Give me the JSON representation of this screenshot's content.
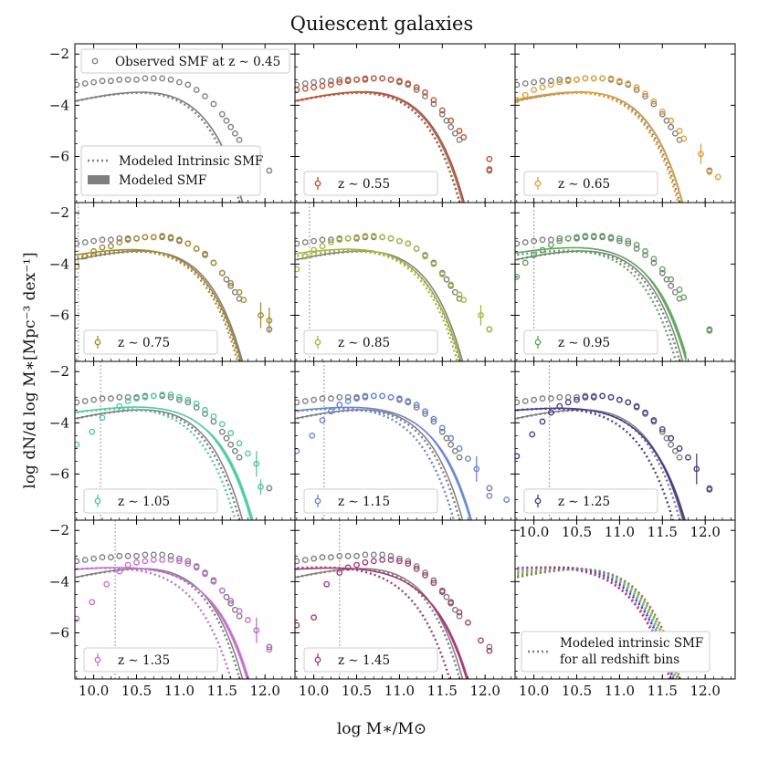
{
  "figure": {
    "title": "Quiescent galaxies",
    "xlabel": "log M∗/M⊙",
    "ylabel": "log dN/d log M∗[Mpc⁻³ dex⁻¹]"
  },
  "chart_data": {
    "type": "line",
    "title": "Quiescent galaxies",
    "xlabel": "log M∗/M⊙",
    "ylabel": "log dN/d log M∗ [Mpc^-3 dex^-1]",
    "xlim": [
      9.78,
      12.35
    ],
    "ylim": [
      -7.8,
      -1.6
    ],
    "xticks": [
      10.0,
      10.5,
      11.0,
      11.5,
      12.0
    ],
    "xtick_labels": [
      "10.0",
      "10.5",
      "11.0",
      "11.5",
      "12.0"
    ],
    "yticks": [
      -2,
      -4,
      -6
    ],
    "ytick_labels": [
      "−2",
      "−4",
      "−6"
    ],
    "reference_color": "#7f7f7f",
    "reference_label": "Observed SMF at z ∼ 0.45",
    "reference_observed": {
      "x": [
        9.8,
        9.9,
        10.0,
        10.1,
        10.2,
        10.3,
        10.4,
        10.5,
        10.6,
        10.7,
        10.8,
        10.9,
        11.0,
        11.1,
        11.2,
        11.3,
        11.4,
        11.5,
        11.55,
        11.6,
        11.65,
        11.7,
        12.05
      ],
      "y": [
        -3.2,
        -3.15,
        -3.1,
        -3.05,
        -3.05,
        -3.0,
        -3.0,
        -3.0,
        -2.95,
        -2.95,
        -2.95,
        -3.0,
        -3.1,
        -3.2,
        -3.4,
        -3.65,
        -3.95,
        -4.35,
        -4.6,
        -4.85,
        -5.1,
        -5.35,
        -6.55
      ]
    },
    "reference_model": {
      "phi": -2.95,
      "mc": 10.75,
      "alpha": -0.15,
      "beta": 1.35,
      "xmax": 11.78
    },
    "reference_intrinsic": {
      "phi": -2.95,
      "mc": 10.75,
      "alpha": -0.15,
      "beta": 1.45,
      "xmax": 12.25
    },
    "legend": {
      "observed": "Observed SMF at z ∼ 0.45",
      "intrinsic": "Modeled Intrinsic SMF",
      "modeled": "Modeled SMF",
      "all_intrinsic_line1": "Modeled intrinsic SMF",
      "all_intrinsic_line2": "for all redshift bins"
    },
    "series": [
      {
        "label": "z ∼ 0.55",
        "color": "#c2502e",
        "completeness": null,
        "model": {
          "phi": -2.95,
          "mc": 10.75,
          "alpha": -0.15,
          "beta": 1.3,
          "xmax": 11.78,
          "spread": 0.12
        },
        "intrinsic": {
          "phi": -2.95,
          "mc": 10.75,
          "alpha": -0.15,
          "beta": 1.45,
          "xmax": 12.25
        },
        "observed": {
          "x": [
            9.8,
            9.9,
            10.0,
            10.1,
            10.2,
            10.3,
            10.4,
            10.5,
            10.6,
            10.7,
            10.8,
            10.9,
            11.0,
            11.1,
            11.2,
            11.3,
            11.4,
            11.5,
            11.6,
            11.7,
            11.75,
            12.05,
            12.05
          ],
          "y": [
            -3.4,
            -3.35,
            -3.3,
            -3.25,
            -3.2,
            -3.1,
            -3.05,
            -3.0,
            -3.0,
            -2.95,
            -2.95,
            -3.0,
            -3.05,
            -3.15,
            -3.3,
            -3.5,
            -3.8,
            -4.2,
            -4.6,
            -5.0,
            -5.25,
            -6.1,
            -6.5
          ],
          "err": [
            0,
            0,
            0,
            0,
            0,
            0,
            0,
            0,
            0,
            0,
            0,
            0,
            0,
            0,
            0,
            0,
            0,
            0,
            0,
            0,
            0,
            0,
            0
          ]
        }
      },
      {
        "label": "z ∼ 0.65",
        "color": "#e0a03a",
        "completeness": null,
        "model": {
          "phi": -2.95,
          "mc": 10.75,
          "alpha": -0.2,
          "beta": 1.35,
          "xmax": 11.78,
          "spread": 0.14
        },
        "intrinsic": {
          "phi": -2.95,
          "mc": 10.75,
          "alpha": -0.2,
          "beta": 1.5,
          "xmax": 12.25
        },
        "observed": {
          "x": [
            9.8,
            9.9,
            10.0,
            10.1,
            10.2,
            10.3,
            10.4,
            10.5,
            10.6,
            10.7,
            10.8,
            10.9,
            11.0,
            11.1,
            11.2,
            11.3,
            11.4,
            11.5,
            11.6,
            11.7,
            11.75,
            11.95,
            12.05,
            12.15
          ],
          "y": [
            -3.8,
            -3.6,
            -3.4,
            -3.3,
            -3.2,
            -3.1,
            -3.05,
            -3.0,
            -2.95,
            -2.95,
            -2.95,
            -2.95,
            -3.05,
            -3.15,
            -3.3,
            -3.55,
            -3.85,
            -4.25,
            -4.6,
            -5.0,
            -5.3,
            -5.9,
            -6.6,
            -6.8
          ],
          "err": [
            0,
            0,
            0,
            0,
            0,
            0,
            0,
            0,
            0,
            0,
            0,
            0,
            0,
            0,
            0,
            0,
            0,
            0,
            0,
            0,
            0,
            0.4,
            0,
            0
          ]
        }
      },
      {
        "label": "z ∼ 0.75",
        "color": "#a78a2e",
        "completeness": 9.82,
        "model": {
          "phi": -2.95,
          "mc": 10.75,
          "alpha": -0.35,
          "beta": 1.35,
          "xmax": 11.78,
          "spread": 0.14
        },
        "intrinsic": {
          "phi": -2.95,
          "mc": 10.75,
          "alpha": -0.25,
          "beta": 1.5,
          "xmax": 12.25
        },
        "observed": {
          "x": [
            9.8,
            9.9,
            10.0,
            10.1,
            10.2,
            10.3,
            10.4,
            10.5,
            10.6,
            10.7,
            10.8,
            10.9,
            11.0,
            11.1,
            11.2,
            11.3,
            11.4,
            11.5,
            11.6,
            11.7,
            11.75,
            11.95,
            12.05
          ],
          "y": [
            -4.1,
            -3.7,
            -3.5,
            -3.35,
            -3.3,
            -3.15,
            -3.05,
            -3.0,
            -2.95,
            -2.95,
            -2.9,
            -2.95,
            -3.05,
            -3.2,
            -3.4,
            -3.6,
            -3.95,
            -4.35,
            -4.75,
            -5.1,
            -5.4,
            -6.0,
            -6.2
          ],
          "err": [
            0,
            0,
            0,
            0,
            0,
            0,
            0,
            0,
            0,
            0,
            0,
            0,
            0,
            0,
            0,
            0,
            0,
            0,
            0,
            0,
            0,
            0.5,
            0.5
          ]
        }
      },
      {
        "label": "z ∼ 0.85",
        "color": "#a9b53c",
        "completeness": 9.95,
        "model": {
          "phi": -2.95,
          "mc": 10.75,
          "alpha": -0.4,
          "beta": 1.35,
          "xmax": 11.78,
          "spread": 0.15
        },
        "intrinsic": {
          "phi": -2.95,
          "mc": 10.75,
          "alpha": -0.3,
          "beta": 1.5,
          "xmax": 12.25
        },
        "observed": {
          "x": [
            9.8,
            9.9,
            10.0,
            10.1,
            10.2,
            10.3,
            10.4,
            10.5,
            10.6,
            10.7,
            10.8,
            10.9,
            11.0,
            11.1,
            11.2,
            11.3,
            11.4,
            11.5,
            11.6,
            11.7,
            11.75,
            11.95,
            12.05
          ],
          "y": [
            -4.2,
            -3.7,
            -3.45,
            -3.3,
            -3.15,
            -3.05,
            -3.0,
            -2.95,
            -2.9,
            -2.9,
            -2.95,
            -3.0,
            -3.1,
            -3.2,
            -3.4,
            -3.7,
            -4.0,
            -4.4,
            -4.8,
            -5.2,
            -5.4,
            -6.0,
            -6.55
          ],
          "err": [
            0,
            0,
            0,
            0,
            0,
            0,
            0,
            0,
            0,
            0,
            0,
            0,
            0,
            0,
            0,
            0,
            0,
            0,
            0,
            0,
            0,
            0.4,
            0
          ]
        }
      },
      {
        "label": "z ∼ 0.95",
        "color": "#5ca65c",
        "completeness": 10.0,
        "model": {
          "phi": -2.9,
          "mc": 10.8,
          "alpha": -0.4,
          "beta": 1.3,
          "xmax": 11.78,
          "spread": 0.22
        },
        "intrinsic": {
          "phi": -2.95,
          "mc": 10.75,
          "alpha": -0.35,
          "beta": 1.55,
          "xmax": 12.25
        },
        "observed": {
          "x": [
            9.8,
            9.9,
            10.0,
            10.1,
            10.2,
            10.3,
            10.4,
            10.5,
            10.6,
            10.7,
            10.8,
            10.9,
            11.0,
            11.1,
            11.2,
            11.3,
            11.4,
            11.5,
            11.6,
            11.7,
            11.75,
            12.05
          ],
          "y": [
            -4.5,
            -3.95,
            -3.65,
            -3.45,
            -3.25,
            -3.1,
            -3.0,
            -2.95,
            -2.9,
            -2.9,
            -2.9,
            -2.95,
            -3.0,
            -3.1,
            -3.25,
            -3.5,
            -3.8,
            -4.2,
            -4.6,
            -5.0,
            -5.3,
            -6.6
          ],
          "err": [
            0,
            0,
            0,
            0,
            0,
            0,
            0,
            0,
            0,
            0,
            0,
            0,
            0,
            0,
            0,
            0,
            0,
            0,
            0,
            0,
            0,
            0
          ]
        }
      },
      {
        "label": "z ∼ 1.05",
        "color": "#4ecba0",
        "completeness": 10.08,
        "model": {
          "phi": -2.95,
          "mc": 10.85,
          "alpha": -0.45,
          "beta": 1.25,
          "xmax": 11.9,
          "spread": 0.25
        },
        "intrinsic": {
          "phi": -2.95,
          "mc": 10.75,
          "alpha": -0.4,
          "beta": 1.55,
          "xmax": 12.25
        },
        "observed": {
          "x": [
            9.8,
            9.98,
            10.1,
            10.3,
            10.4,
            10.5,
            10.6,
            10.7,
            10.8,
            10.9,
            11.0,
            11.1,
            11.2,
            11.3,
            11.4,
            11.5,
            11.6,
            11.7,
            11.8,
            11.9,
            11.95
          ],
          "y": [
            -4.85,
            -4.35,
            -3.8,
            -3.35,
            -3.15,
            -3.05,
            -3.0,
            -2.95,
            -2.9,
            -2.9,
            -3.0,
            -3.1,
            -3.25,
            -3.5,
            -3.75,
            -4.05,
            -4.4,
            -4.8,
            -5.2,
            -5.6,
            -6.5
          ],
          "err": [
            0,
            0,
            0,
            0,
            0,
            0,
            0,
            0,
            0,
            0,
            0,
            0,
            0,
            0,
            0,
            0,
            0,
            0,
            0,
            0.5,
            0.3
          ]
        }
      },
      {
        "label": "z ∼ 1.15",
        "color": "#6685d8",
        "completeness": 10.12,
        "model": {
          "phi": -3.0,
          "mc": 10.85,
          "alpha": -0.55,
          "beta": 1.25,
          "xmax": 11.9,
          "spread": 0.2
        },
        "intrinsic": {
          "phi": -2.95,
          "mc": 10.75,
          "alpha": -0.45,
          "beta": 1.6,
          "xmax": 12.25
        },
        "observed": {
          "x": [
            9.8,
            9.98,
            10.1,
            10.2,
            10.3,
            10.4,
            10.5,
            10.6,
            10.7,
            10.8,
            10.9,
            11.0,
            11.1,
            11.2,
            11.3,
            11.4,
            11.5,
            11.6,
            11.7,
            11.8,
            11.9,
            12.05,
            12.25
          ],
          "y": [
            -5.1,
            -4.5,
            -3.9,
            -3.55,
            -3.3,
            -3.15,
            -3.05,
            -3.0,
            -2.95,
            -2.95,
            -3.0,
            -3.05,
            -3.15,
            -3.3,
            -3.55,
            -3.85,
            -4.2,
            -4.6,
            -5.0,
            -5.4,
            -5.8,
            -6.85,
            -7.0
          ],
          "err": [
            0,
            0,
            0,
            0,
            0,
            0,
            0,
            0,
            0,
            0,
            0,
            0,
            0,
            0,
            0,
            0,
            0,
            0,
            0,
            0,
            0.5,
            0,
            0
          ]
        }
      },
      {
        "label": "z ∼ 1.25",
        "color": "#4e3a8a",
        "completeness": 10.18,
        "model": {
          "phi": -3.05,
          "mc": 10.8,
          "alpha": -0.6,
          "beta": 1.3,
          "xmax": 11.9,
          "spread": 0.22
        },
        "intrinsic": {
          "phi": -3.0,
          "mc": 10.75,
          "alpha": -0.55,
          "beta": 1.6,
          "xmax": 12.25
        },
        "observed": {
          "x": [
            9.8,
            9.98,
            10.1,
            10.2,
            10.3,
            10.4,
            10.5,
            10.6,
            10.7,
            10.8,
            10.9,
            11.0,
            11.1,
            11.2,
            11.3,
            11.4,
            11.5,
            11.6,
            11.7,
            11.8,
            11.9,
            12.05
          ],
          "y": [
            -5.3,
            -4.45,
            -3.95,
            -3.6,
            -3.35,
            -3.2,
            -3.1,
            -3.0,
            -3.0,
            -2.95,
            -3.0,
            -3.1,
            -3.2,
            -3.35,
            -3.6,
            -3.9,
            -4.25,
            -4.6,
            -5.0,
            -5.35,
            -5.8,
            -6.6
          ],
          "err": [
            0,
            0,
            0,
            0,
            0,
            0,
            0,
            0,
            0,
            0,
            0,
            0,
            0,
            0,
            0,
            0,
            0,
            0,
            0,
            0,
            0.6,
            0
          ]
        }
      },
      {
        "label": "z ∼ 1.35",
        "color": "#c66fd0",
        "completeness": 10.25,
        "model": {
          "phi": -3.1,
          "mc": 10.85,
          "alpha": -0.65,
          "beta": 1.3,
          "xmax": 11.9,
          "spread": 0.25
        },
        "intrinsic": {
          "phi": -3.05,
          "mc": 10.75,
          "alpha": -0.6,
          "beta": 1.65,
          "xmax": 12.25
        },
        "observed": {
          "x": [
            9.8,
            9.98,
            10.15,
            10.3,
            10.4,
            10.5,
            10.6,
            10.7,
            10.8,
            10.9,
            11.0,
            11.1,
            11.2,
            11.3,
            11.4,
            11.5,
            11.6,
            11.7,
            11.8,
            11.9,
            12.05
          ],
          "y": [
            -5.45,
            -4.8,
            -4.1,
            -3.6,
            -3.35,
            -3.25,
            -3.2,
            -3.15,
            -3.15,
            -3.15,
            -3.2,
            -3.3,
            -3.45,
            -3.7,
            -4.0,
            -4.35,
            -4.75,
            -5.15,
            -5.5,
            -5.9,
            -6.65
          ],
          "err": [
            0,
            0,
            0,
            0,
            0,
            0,
            0,
            0,
            0,
            0,
            0,
            0,
            0,
            0,
            0,
            0,
            0,
            0,
            0,
            0.5,
            0
          ]
        }
      },
      {
        "label": "z ∼ 1.45",
        "color": "#a53a74",
        "completeness": 10.3,
        "model": {
          "phi": -3.15,
          "mc": 10.85,
          "alpha": -0.7,
          "beta": 1.3,
          "xmax": 11.9,
          "spread": 0.22
        },
        "intrinsic": {
          "phi": -3.05,
          "mc": 10.75,
          "alpha": -0.65,
          "beta": 1.7,
          "xmax": 12.25
        },
        "observed": {
          "x": [
            9.8,
            10.0,
            10.15,
            10.3,
            10.4,
            10.5,
            10.6,
            10.7,
            10.8,
            10.9,
            11.0,
            11.1,
            11.2,
            11.3,
            11.4,
            11.5,
            11.6,
            11.7,
            11.8,
            11.95,
            12.05
          ],
          "y": [
            -5.7,
            -5.4,
            -4.1,
            -3.65,
            -3.45,
            -3.35,
            -3.25,
            -3.2,
            -3.15,
            -3.15,
            -3.2,
            -3.3,
            -3.5,
            -3.75,
            -4.05,
            -4.4,
            -4.8,
            -5.2,
            -5.6,
            -6.3,
            -6.7
          ],
          "err": [
            0,
            0,
            0,
            0,
            0,
            0,
            0,
            0,
            0,
            0,
            0,
            0,
            0,
            0,
            0,
            0,
            0,
            0,
            0,
            0,
            0
          ]
        }
      }
    ]
  }
}
